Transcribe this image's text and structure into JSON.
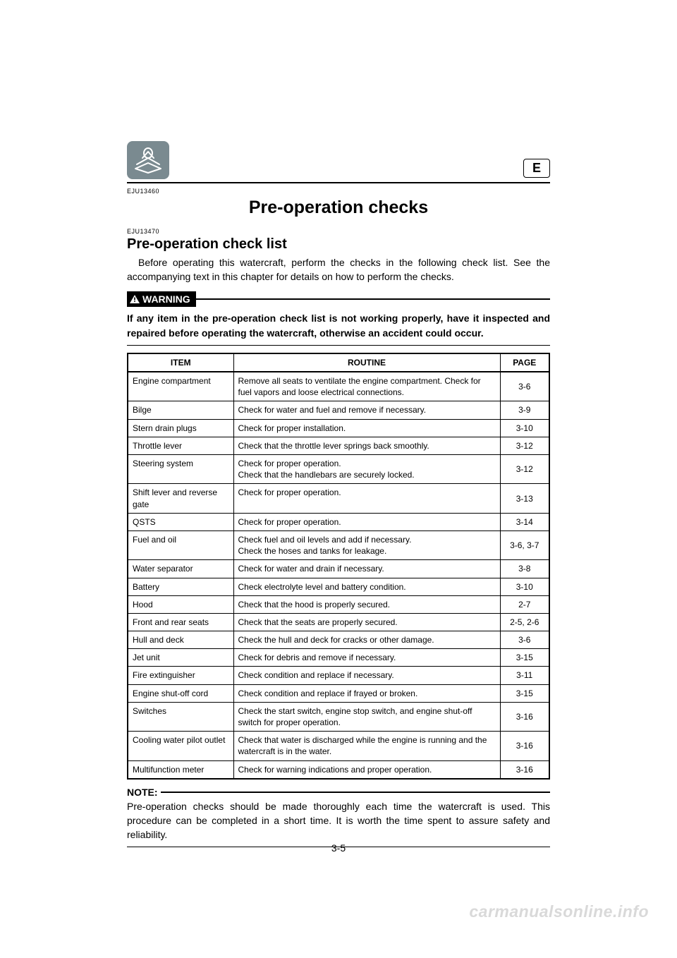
{
  "lang_indicator": "E",
  "refcode_top": "EJU13460",
  "doc_title": "Pre-operation checks",
  "refcode_section": "EJU13470",
  "section_heading": "Pre-operation check list",
  "intro_text": "Before operating this watercraft, perform the checks in the following check list. See the accompanying text in this chapter for details on how to perform the checks.",
  "warning_label": "WARNING",
  "warning_text": "If any item in the pre-operation check list is not working properly, have it inspected and repaired before operating the watercraft, otherwise an accident could occur.",
  "table": {
    "columns": {
      "item": "ITEM",
      "routine": "ROUTINE",
      "page": "PAGE"
    },
    "rows": [
      {
        "item": "Engine compartment",
        "routine": "Remove all seats to ventilate the engine compartment. Check for fuel vapors and loose electrical connections.",
        "page": "3-6"
      },
      {
        "item": "Bilge",
        "routine": "Check for water and fuel and remove if necessary.",
        "page": "3-9"
      },
      {
        "item": "Stern drain plugs",
        "routine": "Check for proper installation.",
        "page": "3-10"
      },
      {
        "item": "Throttle lever",
        "routine": "Check that the throttle lever springs back smoothly.",
        "page": "3-12"
      },
      {
        "item": "Steering system",
        "routine": "Check for proper operation.\nCheck that the handlebars are securely locked.",
        "page": "3-12"
      },
      {
        "item": "Shift lever and reverse gate",
        "routine": "Check for proper operation.",
        "page": "3-13"
      },
      {
        "item": "QSTS",
        "routine": "Check for proper operation.",
        "page": "3-14"
      },
      {
        "item": "Fuel and oil",
        "routine": "Check fuel and oil levels and add if necessary.\nCheck the hoses and tanks for leakage.",
        "page": "3-6, 3-7"
      },
      {
        "item": "Water separator",
        "routine": "Check for water and drain if necessary.",
        "page": "3-8"
      },
      {
        "item": "Battery",
        "routine": "Check electrolyte level and battery condition.",
        "page": "3-10"
      },
      {
        "item": "Hood",
        "routine": "Check that the hood is properly secured.",
        "page": "2-7"
      },
      {
        "item": "Front and rear seats",
        "routine": "Check that the seats are properly secured.",
        "page": "2-5, 2-6"
      },
      {
        "item": "Hull and deck",
        "routine": "Check the hull and deck for cracks or other damage.",
        "page": "3-6"
      },
      {
        "item": "Jet unit",
        "routine": "Check for debris and remove if necessary.",
        "page": "3-15"
      },
      {
        "item": "Fire extinguisher",
        "routine": "Check condition and replace if necessary.",
        "page": "3-11"
      },
      {
        "item": "Engine shut-off cord",
        "routine": "Check condition and replace if frayed or broken.",
        "page": "3-15"
      },
      {
        "item": "Switches",
        "routine": "Check the start switch, engine stop switch, and engine shut-off switch for proper operation.",
        "page": "3-16"
      },
      {
        "item": "Cooling water pilot outlet",
        "routine": "Check that water is discharged while the engine is running and the watercraft is in the water.",
        "page": "3-16"
      },
      {
        "item": "Multifunction meter",
        "routine": "Check for warning indications and proper operation.",
        "page": "3-16"
      }
    ]
  },
  "note_label": "NOTE:",
  "note_text": "Pre-operation checks should be made thoroughly each time the watercraft is used. This procedure can be completed in a short time. It is worth the time spent to assure safety and reliability.",
  "page_number": "3-5",
  "watermark": "carmanualsonline.info"
}
